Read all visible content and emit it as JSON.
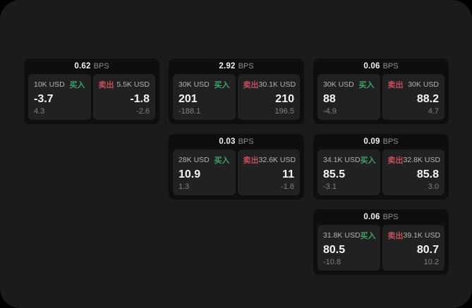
{
  "labels": {
    "bps_unit": "BPS",
    "buy": "买入",
    "sell": "卖出"
  },
  "colors": {
    "buy_green": "#3fa164",
    "sell_red": "#c24f5f",
    "page_bg": "#1b1b1b",
    "card_bg": "#0e0e0e",
    "panel_bg": "#212121"
  },
  "cards": [
    {
      "spread": "0.62",
      "col": 0,
      "row": 0,
      "buy": {
        "amount": "10K USD",
        "price": "-3.7",
        "change": "4.3"
      },
      "sell": {
        "amount": "5.5K USD",
        "price": "-1.8",
        "change": "-2.6"
      }
    },
    {
      "spread": "2.92",
      "col": 1,
      "row": 0,
      "buy": {
        "amount": "30K USD",
        "price": "201",
        "change": "-188.1"
      },
      "sell": {
        "amount": "30.1K USD",
        "price": "210",
        "change": "196.5"
      }
    },
    {
      "spread": "0.06",
      "col": 2,
      "row": 0,
      "buy": {
        "amount": "30K USD",
        "price": "88",
        "change": "-4.9"
      },
      "sell": {
        "amount": "30K USD",
        "price": "88.2",
        "change": "4.7"
      }
    },
    {
      "spread": "0.03",
      "col": 1,
      "row": 1,
      "buy": {
        "amount": "28K USD",
        "price": "10.9",
        "change": "1.3"
      },
      "sell": {
        "amount": "32.6K USD",
        "price": "11",
        "change": "-1.8"
      }
    },
    {
      "spread": "0.09",
      "col": 2,
      "row": 1,
      "buy": {
        "amount": "34.1K USD",
        "price": "85.5",
        "change": "-3.1"
      },
      "sell": {
        "amount": "32.8K USD",
        "price": "85.8",
        "change": "3.0"
      }
    },
    {
      "spread": "0.06",
      "col": 2,
      "row": 2,
      "buy": {
        "amount": "31.8K USD",
        "price": "80.5",
        "change": "-10.8"
      },
      "sell": {
        "amount": "39.1K USD",
        "price": "80.7",
        "change": "10.2"
      }
    }
  ]
}
